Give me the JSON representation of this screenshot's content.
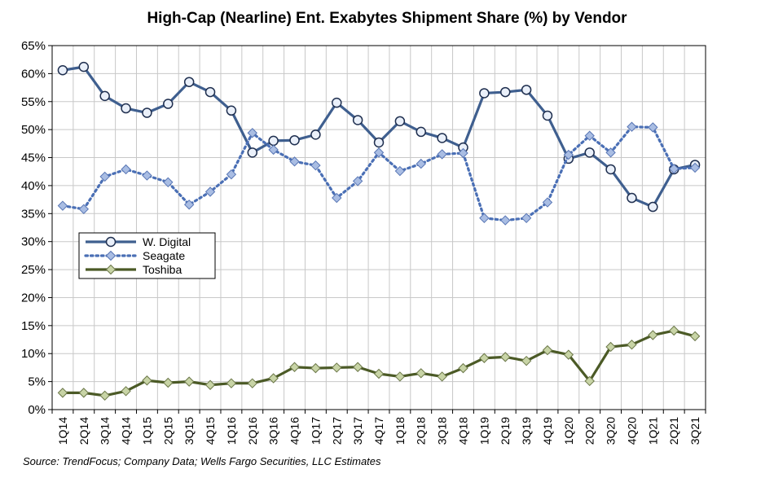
{
  "chart_data": {
    "type": "line",
    "title": "High-Cap (Nearline) Ent. Exabytes Shipment Share (%) by Vendor",
    "xlabel": "",
    "ylabel": "",
    "ylim": [
      0,
      65
    ],
    "y_ticks": [
      "0%",
      "5%",
      "10%",
      "15%",
      "20%",
      "25%",
      "30%",
      "35%",
      "40%",
      "45%",
      "50%",
      "55%",
      "60%",
      "65%"
    ],
    "grid": true,
    "legend": "left-middle",
    "categories": [
      "1Q14",
      "2Q14",
      "3Q14",
      "4Q14",
      "1Q15",
      "2Q15",
      "3Q15",
      "4Q15",
      "1Q16",
      "2Q16",
      "3Q16",
      "4Q16",
      "1Q17",
      "2Q17",
      "3Q17",
      "4Q17",
      "1Q18",
      "2Q18",
      "3Q18",
      "4Q18",
      "1Q19",
      "2Q19",
      "3Q19",
      "4Q19",
      "1Q20",
      "2Q20",
      "3Q20",
      "4Q20",
      "1Q21",
      "2Q21",
      "3Q21"
    ],
    "series": [
      {
        "name": "W. Digital",
        "color": "#3f5f8f",
        "style": "solid",
        "marker": "circle",
        "values": [
          60.6,
          61.2,
          56.0,
          53.8,
          53.0,
          54.6,
          58.5,
          56.7,
          53.4,
          45.9,
          48.0,
          48.1,
          49.1,
          54.8,
          51.7,
          47.7,
          51.5,
          49.6,
          48.5,
          46.8,
          56.5,
          56.7,
          57.1,
          52.5,
          44.8,
          45.9,
          42.9,
          37.8,
          36.2,
          42.9,
          43.7
        ]
      },
      {
        "name": "Seagate",
        "color": "#4a6fb5",
        "style": "dotted",
        "marker": "diamond",
        "values": [
          36.4,
          35.8,
          41.6,
          42.9,
          41.8,
          40.6,
          36.6,
          38.9,
          42.0,
          49.4,
          46.4,
          44.3,
          43.6,
          37.8,
          40.8,
          45.9,
          42.6,
          43.9,
          45.6,
          45.8,
          34.2,
          33.8,
          34.2,
          37.0,
          45.5,
          48.9,
          45.9,
          50.5,
          50.4,
          43.0,
          43.2
        ]
      },
      {
        "name": "Toshiba",
        "color": "#4b5a26",
        "style": "solid",
        "marker": "diamond",
        "values": [
          3.0,
          3.0,
          2.5,
          3.3,
          5.2,
          4.8,
          5.0,
          4.4,
          4.7,
          4.7,
          5.6,
          7.6,
          7.4,
          7.5,
          7.6,
          6.4,
          5.9,
          6.5,
          5.9,
          7.4,
          9.2,
          9.4,
          8.7,
          10.6,
          9.8,
          5.1,
          11.2,
          11.6,
          13.3,
          14.1,
          13.1
        ]
      }
    ]
  },
  "source_text": "Source:  TrendFocus; Company Data; Wells Fargo Securities, LLC Estimates"
}
